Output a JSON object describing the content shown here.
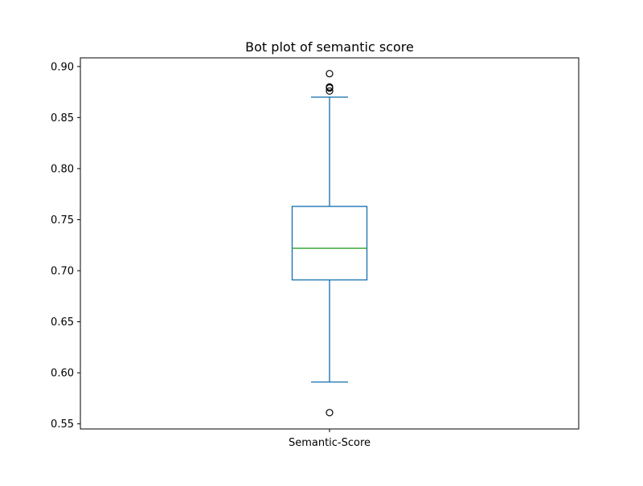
{
  "chart_data": {
    "type": "box",
    "title": "Bot plot of semantic score",
    "xlabel": "",
    "ylabel": "",
    "categories": [
      "Semantic-Score"
    ],
    "ylim": [
      0.545,
      0.9085
    ],
    "yticks": [
      0.55,
      0.6,
      0.65,
      0.7,
      0.75,
      0.8,
      0.85,
      0.9
    ],
    "ytick_labels": [
      "0.55",
      "0.60",
      "0.65",
      "0.70",
      "0.75",
      "0.80",
      "0.85",
      "0.90"
    ],
    "grid": false,
    "boxes": [
      {
        "name": "Semantic-Score",
        "whisker_low": 0.591,
        "q1": 0.691,
        "median": 0.722,
        "q3": 0.763,
        "whisker_high": 0.87,
        "outliers": [
          0.893,
          0.88,
          0.879,
          0.876,
          0.561
        ]
      }
    ],
    "colors": {
      "box": "#1f77b4",
      "median": "#2ca02c",
      "outlier_edge": "#000000"
    }
  }
}
